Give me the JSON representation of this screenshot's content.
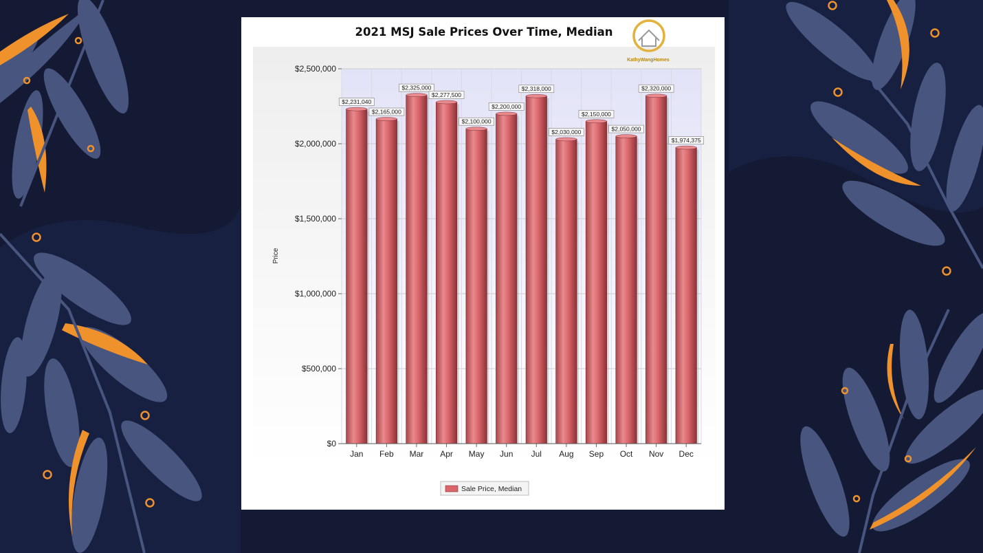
{
  "logo_text": "KathyWangHomes",
  "chart_data": {
    "type": "bar",
    "title": "2021 MSJ Sale Prices Over Time, Median",
    "xlabel": "",
    "ylabel": "Price",
    "categories": [
      "Jan",
      "Feb",
      "Mar",
      "Apr",
      "May",
      "Jun",
      "Jul",
      "Aug",
      "Sep",
      "Oct",
      "Nov",
      "Dec"
    ],
    "series": [
      {
        "name": "Sale Price, Median",
        "values": [
          2231040,
          2165000,
          2325000,
          2277500,
          2100000,
          2200000,
          2318000,
          2030000,
          2150000,
          2050000,
          2320000,
          1974375
        ],
        "labels": [
          "$2,231,040",
          "$2,165,000",
          "$2,325,000",
          "$2,277,500",
          "$2,100,000",
          "$2,200,000",
          "$2,318,000",
          "$2,030,000",
          "$2,150,000",
          "$2,050,000",
          "$2,320,000",
          "$1,974,375"
        ],
        "color": "#d9666b"
      }
    ],
    "ylim": [
      0,
      2500000
    ],
    "yticks": [
      0,
      500000,
      1000000,
      1500000,
      2000000,
      2500000
    ],
    "ytick_labels": [
      "$0",
      "$500,000",
      "$1,000,000",
      "$1,500,000",
      "$2,000,000",
      "$2,500,000"
    ],
    "grid": true,
    "legend_position": "bottom-center"
  },
  "colors": {
    "background": "#141a33",
    "leaf": "#4a5a8a",
    "accent": "#f0922b",
    "card": "#ffffff",
    "plot_bg_top": "#e3e3f8",
    "bar": "#d9666b"
  }
}
